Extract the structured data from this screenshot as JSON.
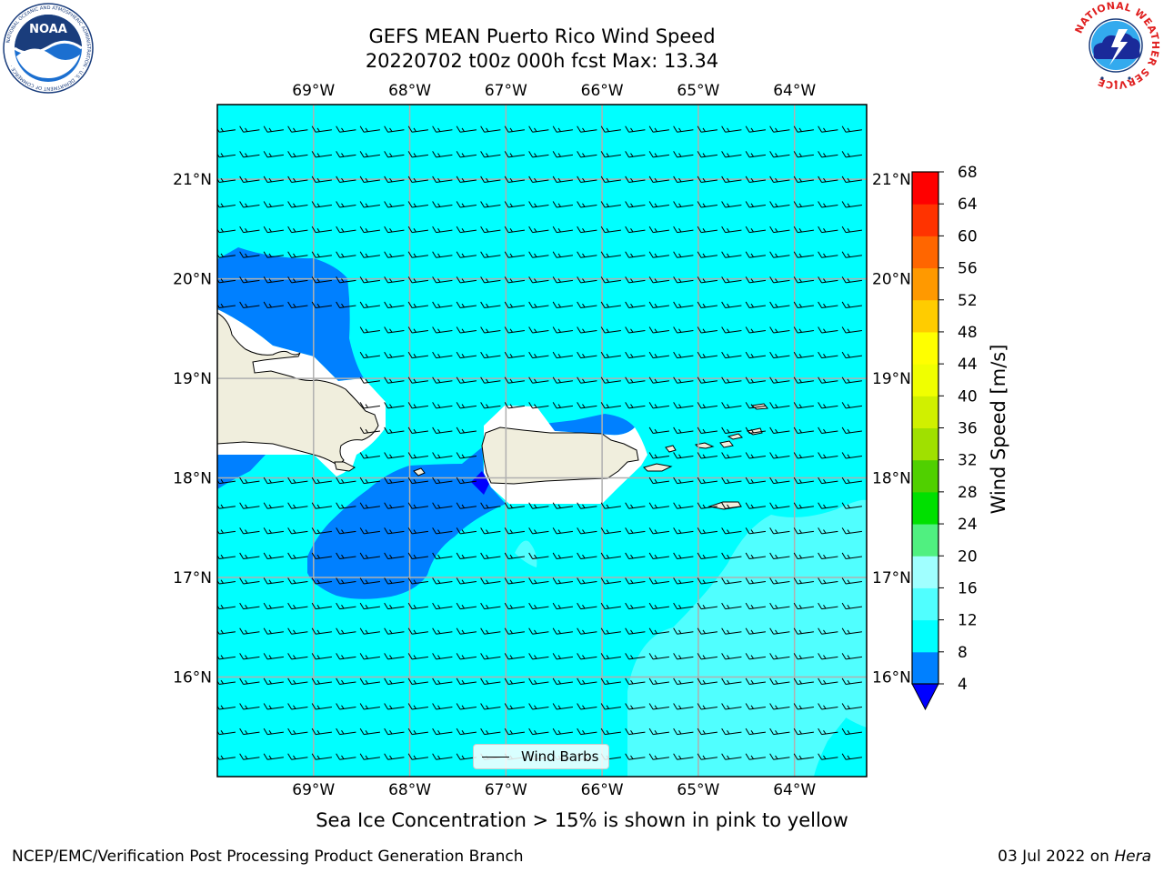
{
  "title": {
    "line1": "GEFS MEAN Puerto Rico Wind Speed",
    "line2": "20220702 t00z 000h fcst   Max: 13.34"
  },
  "logos": {
    "left": {
      "name": "NOAA",
      "ring_text": "NATIONAL OCEANIC AND ATMOSPHERIC ADMINISTRATION · U.S. DEPARTMENT OF COMMERCE"
    },
    "right": {
      "name": "NATIONAL WEATHER SERVICE"
    }
  },
  "map": {
    "lon_ticks": [
      "69°W",
      "68°W",
      "67°W",
      "66°W",
      "65°W",
      "64°W"
    ],
    "lat_ticks": [
      "21°N",
      "20°N",
      "19°N",
      "18°N",
      "17°N",
      "16°N"
    ],
    "lon_range": [
      -70.0,
      -63.25
    ],
    "lat_range": [
      15.0,
      21.75
    ],
    "gridlines": true,
    "colors": {
      "calm": "#0000ff",
      "light": "#0080ff",
      "moderate": "#00ffff",
      "fresh": "#50ffff",
      "land": "#f0eedd",
      "no_data": "#ffffff",
      "grid": "#b0b0b0"
    },
    "wind_barbs": {
      "direction_from": "E",
      "legend_label": "Wind Barbs"
    }
  },
  "colorbar": {
    "title": "Wind Speed [m/s]",
    "levels": [
      4,
      8,
      12,
      16,
      20,
      24,
      28,
      32,
      36,
      40,
      44,
      48,
      52,
      56,
      60,
      64,
      68
    ],
    "colors": [
      "#0080ff",
      "#00ffff",
      "#50ffff",
      "#a0ffff",
      "#50f080",
      "#00e000",
      "#50d000",
      "#a0e000",
      "#d0f000",
      "#f0ff00",
      "#ffff00",
      "#ffcc00",
      "#ff9900",
      "#ff6600",
      "#ff3300",
      "#ff0000"
    ],
    "under_color": "#0000ff"
  },
  "note": "Sea Ice Concentration > 15% is shown in pink to yellow",
  "footer": {
    "left": "NCEP/EMC/Verification Post Processing Product Generation Branch",
    "right_prefix": "03 Jul 2022 on ",
    "right_host": "Hera"
  }
}
